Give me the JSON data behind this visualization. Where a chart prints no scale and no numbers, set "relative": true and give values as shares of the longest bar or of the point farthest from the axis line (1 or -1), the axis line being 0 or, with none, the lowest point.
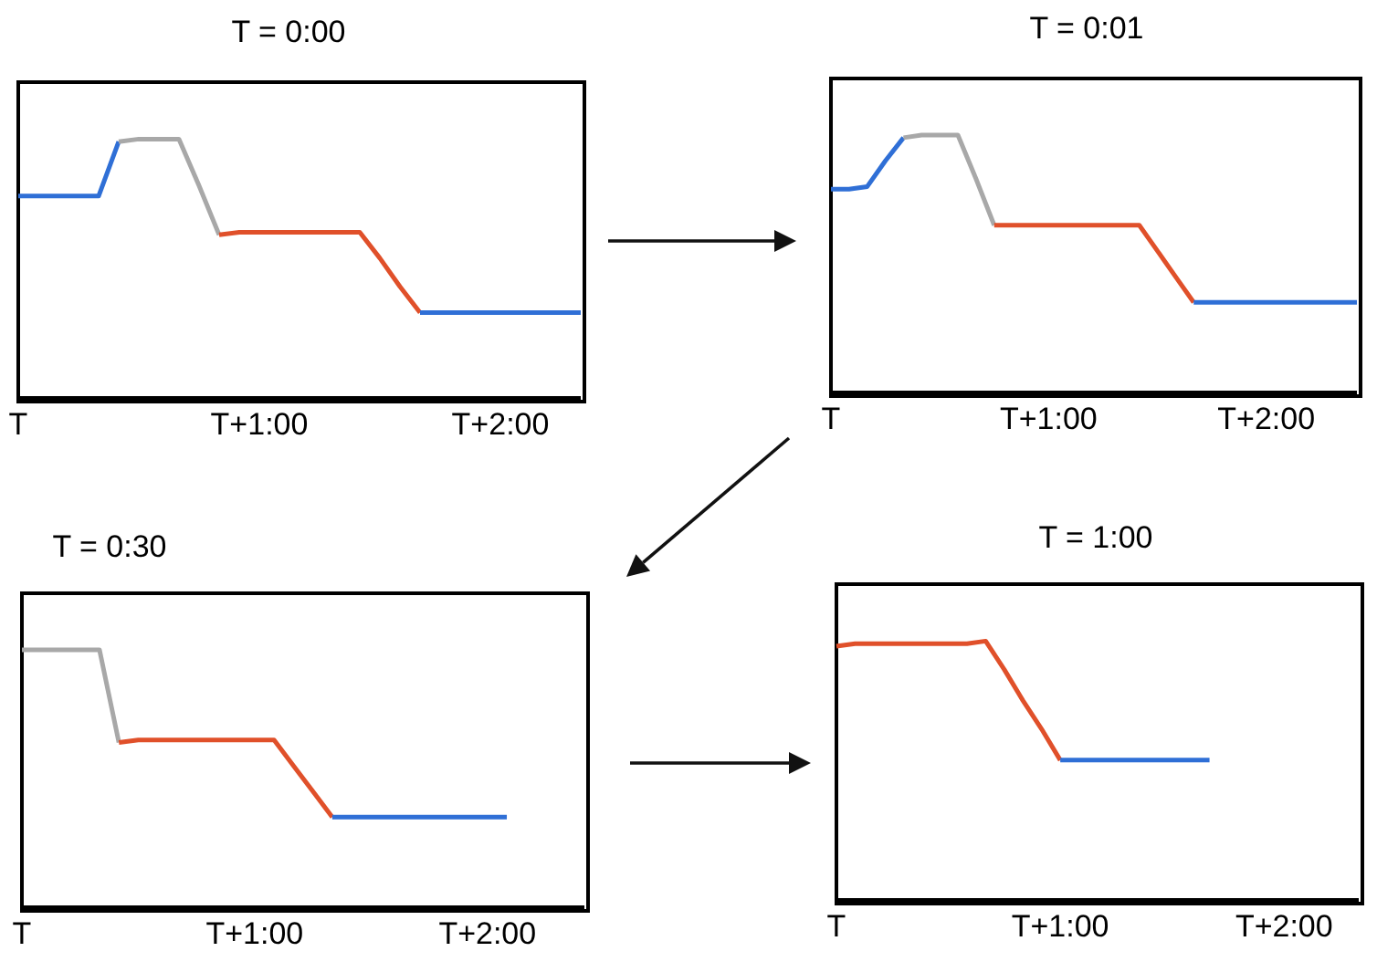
{
  "chart_data": [
    {
      "type": "line",
      "title": "T = 0:00",
      "relative": true,
      "marker": "none",
      "line_style": "solid",
      "categories": [
        "T",
        null,
        null,
        null,
        null,
        null,
        null,
        null,
        null,
        null,
        null,
        null,
        "T+1:00",
        null,
        null,
        null,
        null,
        null,
        null,
        null,
        null,
        null,
        null,
        null,
        "T+2:00",
        null,
        null,
        null,
        null
      ],
      "series": [
        {
          "color": "#2f6fd6",
          "values": [
            0.78,
            0.78,
            0.78,
            0.78,
            0.78,
            0.99,
            null,
            null,
            null,
            null,
            null,
            null,
            null,
            null,
            null,
            null,
            null,
            null,
            null,
            null,
            null,
            null,
            null,
            null,
            null,
            null,
            null,
            null,
            null
          ]
        },
        {
          "color": "#a8a8a8",
          "values": [
            null,
            null,
            null,
            null,
            null,
            0.99,
            1,
            1,
            1,
            0.82,
            0.63,
            null,
            null,
            null,
            null,
            null,
            null,
            null,
            null,
            null,
            null,
            null,
            null,
            null,
            null,
            null,
            null,
            null,
            null
          ]
        },
        {
          "color": "#e0502a",
          "values": [
            null,
            null,
            null,
            null,
            null,
            null,
            null,
            null,
            null,
            null,
            0.63,
            0.64,
            0.64,
            0.64,
            0.64,
            0.64,
            0.64,
            0.64,
            0.54,
            0.43,
            0.33,
            null,
            null,
            null,
            null,
            null,
            null,
            null,
            null
          ]
        },
        {
          "color": "#2f6fd6",
          "values": [
            null,
            null,
            null,
            null,
            null,
            null,
            null,
            null,
            null,
            null,
            null,
            null,
            null,
            null,
            null,
            null,
            null,
            null,
            null,
            null,
            0.33,
            0.33,
            0.33,
            0.33,
            0.33,
            0.33,
            0.33,
            0.33,
            0.33
          ]
        }
      ]
    },
    {
      "type": "line",
      "title": "T = 0:01",
      "relative": true,
      "marker": "none",
      "line_style": "solid",
      "categories": [
        "T",
        null,
        null,
        null,
        null,
        null,
        null,
        null,
        null,
        null,
        null,
        null,
        "T+1:00",
        null,
        null,
        null,
        null,
        null,
        null,
        null,
        null,
        null,
        null,
        null,
        "T+2:00",
        null,
        null,
        null,
        null,
        null
      ],
      "series": [
        {
          "color": "#2f6fd6",
          "values": [
            0.79,
            0.79,
            0.8,
            0.9,
            0.99,
            null,
            null,
            null,
            null,
            null,
            null,
            null,
            null,
            null,
            null,
            null,
            null,
            null,
            null,
            null,
            null,
            null,
            null,
            null,
            null,
            null,
            null,
            null,
            null,
            null
          ]
        },
        {
          "color": "#a8a8a8",
          "values": [
            null,
            null,
            null,
            null,
            0.99,
            1,
            1,
            1,
            0.83,
            0.65,
            null,
            null,
            null,
            null,
            null,
            null,
            null,
            null,
            null,
            null,
            null,
            null,
            null,
            null,
            null,
            null,
            null,
            null,
            null,
            null
          ]
        },
        {
          "color": "#e0502a",
          "values": [
            null,
            null,
            null,
            null,
            null,
            null,
            null,
            null,
            null,
            0.65,
            0.65,
            0.65,
            0.65,
            0.65,
            0.65,
            0.65,
            0.65,
            0.65,
            0.55,
            0.45,
            0.35,
            null,
            null,
            null,
            null,
            null,
            null,
            null,
            null,
            null
          ]
        },
        {
          "color": "#2f6fd6",
          "values": [
            null,
            null,
            null,
            null,
            null,
            null,
            null,
            null,
            null,
            null,
            null,
            null,
            null,
            null,
            null,
            null,
            null,
            null,
            null,
            null,
            0.35,
            0.35,
            0.35,
            0.35,
            0.35,
            0.35,
            0.35,
            0.35,
            0.35,
            0.35
          ]
        }
      ]
    },
    {
      "type": "line",
      "title": "T = 0:30",
      "relative": true,
      "marker": "none",
      "line_style": "solid",
      "categories": [
        "T",
        null,
        null,
        null,
        null,
        null,
        null,
        null,
        null,
        null,
        null,
        null,
        "T+1:00",
        null,
        null,
        null,
        null,
        null,
        null,
        null,
        null,
        null,
        null,
        null,
        "T+2:00",
        null,
        null,
        null,
        null,
        null
      ],
      "series": [
        {
          "color": "#a8a8a8",
          "values": [
            1,
            1,
            1,
            1,
            1,
            0.64,
            null,
            null,
            null,
            null,
            null,
            null,
            null,
            null,
            null,
            null,
            null,
            null,
            null,
            null,
            null,
            null,
            null,
            null,
            null,
            null,
            null,
            null,
            null,
            null
          ]
        },
        {
          "color": "#e0502a",
          "values": [
            null,
            null,
            null,
            null,
            null,
            0.64,
            0.65,
            0.65,
            0.65,
            0.65,
            0.65,
            0.65,
            0.65,
            0.65,
            0.55,
            0.45,
            0.35,
            null,
            null,
            null,
            null,
            null,
            null,
            null,
            null,
            null,
            null,
            null,
            null,
            null
          ]
        },
        {
          "color": "#2f6fd6",
          "values": [
            null,
            null,
            null,
            null,
            null,
            null,
            null,
            null,
            null,
            null,
            null,
            null,
            null,
            null,
            null,
            null,
            0.35,
            0.35,
            0.35,
            0.35,
            0.35,
            0.35,
            0.35,
            0.35,
            0.35,
            0.35,
            null,
            null,
            null,
            null
          ]
        }
      ]
    },
    {
      "type": "line",
      "title": "T = 1:00",
      "relative": true,
      "marker": "none",
      "line_style": "solid",
      "categories": [
        "T",
        null,
        null,
        null,
        null,
        null,
        null,
        null,
        null,
        null,
        null,
        null,
        "T+1:00",
        null,
        null,
        null,
        null,
        null,
        null,
        null,
        null,
        null,
        null,
        null,
        "T+2:00",
        null,
        null,
        null,
        null
      ],
      "series": [
        {
          "color": "#e0502a",
          "values": [
            0.98,
            0.99,
            0.99,
            0.99,
            0.99,
            0.99,
            0.99,
            0.99,
            1,
            0.89,
            0.77,
            0.66,
            0.54,
            null,
            null,
            null,
            null,
            null,
            null,
            null,
            null,
            null,
            null,
            null,
            null,
            null,
            null,
            null,
            null
          ]
        },
        {
          "color": "#2f6fd6",
          "values": [
            null,
            null,
            null,
            null,
            null,
            null,
            null,
            null,
            null,
            null,
            null,
            null,
            0.54,
            0.54,
            0.54,
            0.54,
            0.54,
            0.54,
            0.54,
            0.54,
            0.54,
            null,
            null,
            null,
            null,
            null,
            null,
            null,
            null
          ]
        }
      ]
    }
  ]
}
